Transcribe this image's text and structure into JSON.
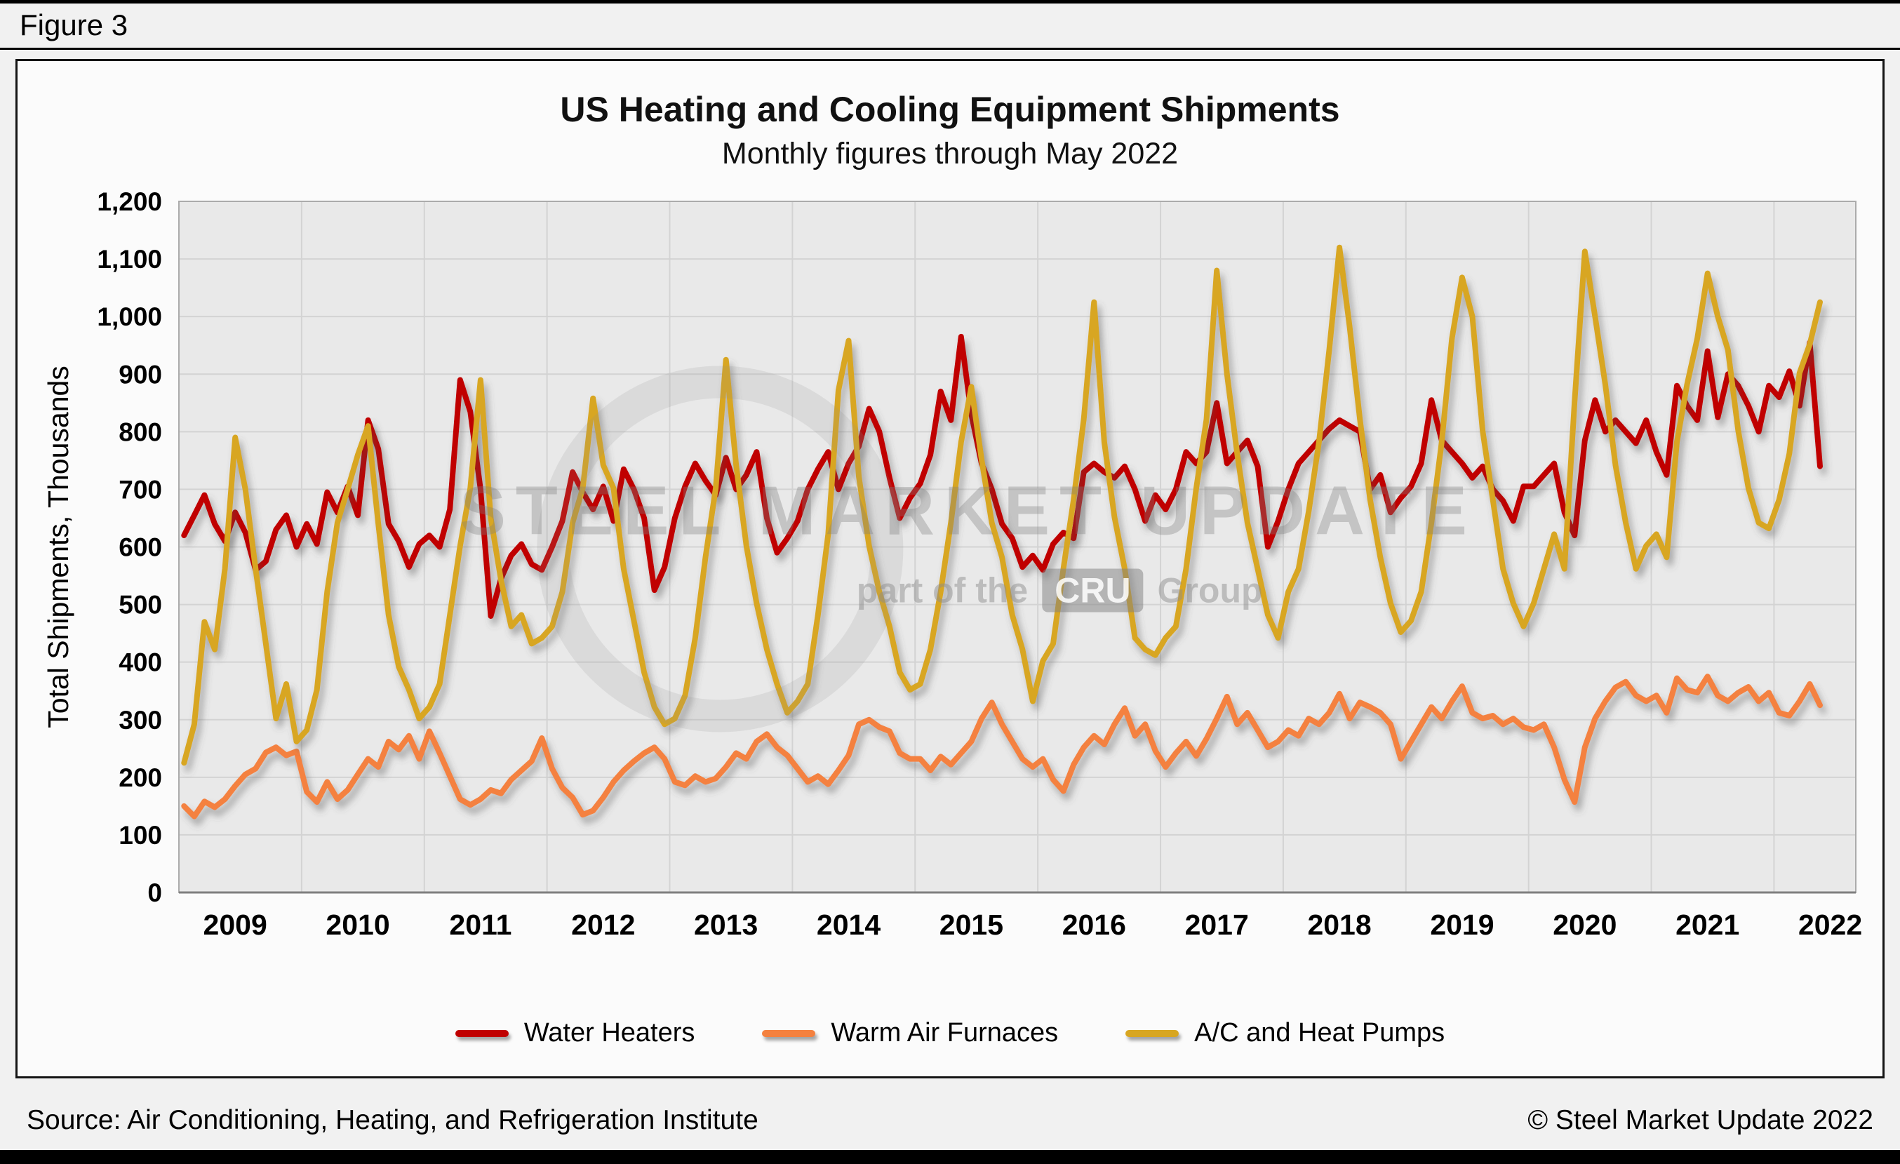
{
  "figure_label": "Figure 3",
  "source": "Source: Air Conditioning, Heating, and Refrigeration Institute",
  "copyright": "© Steel Market Update 2022",
  "watermark": {
    "line1": "STEEL MARKET UPDATE",
    "line2_prefix": "part of the",
    "line2_box": "CRU",
    "line2_suffix": "Group"
  },
  "chart_data": {
    "type": "line",
    "title": "US Heating and Cooling Equipment Shipments",
    "subtitle": "Monthly figures through May 2022",
    "xlabel": "",
    "ylabel": "Total Shipments, Thousands",
    "ylim": [
      0,
      1200
    ],
    "ytick_step": 100,
    "grid": true,
    "legend_position": "bottom",
    "x_unit": "month",
    "x_start": "2009-01",
    "x_end": "2022-05",
    "x_tick_labels": [
      "2009",
      "2010",
      "2011",
      "2012",
      "2013",
      "2014",
      "2015",
      "2016",
      "2017",
      "2018",
      "2019",
      "2020",
      "2021",
      "2022"
    ],
    "series": [
      {
        "name": "Water Heaters",
        "color": "#C00000",
        "values": [
          620,
          655,
          690,
          640,
          610,
          660,
          625,
          560,
          575,
          630,
          655,
          600,
          640,
          605,
          695,
          660,
          705,
          655,
          820,
          770,
          640,
          610,
          565,
          605,
          620,
          600,
          665,
          890,
          835,
          700,
          480,
          545,
          585,
          605,
          570,
          560,
          600,
          645,
          730,
          695,
          665,
          705,
          645,
          735,
          700,
          650,
          525,
          565,
          650,
          705,
          745,
          715,
          690,
          755,
          700,
          725,
          765,
          650,
          590,
          615,
          645,
          700,
          735,
          765,
          700,
          745,
          775,
          840,
          800,
          720,
          650,
          685,
          710,
          760,
          870,
          820,
          965,
          830,
          745,
          700,
          640,
          615,
          565,
          585,
          560,
          605,
          625,
          615,
          730,
          745,
          730,
          720,
          740,
          700,
          645,
          690,
          665,
          700,
          765,
          745,
          765,
          850,
          745,
          765,
          785,
          740,
          600,
          645,
          700,
          745,
          765,
          785,
          805,
          820,
          810,
          800,
          700,
          725,
          660,
          685,
          705,
          745,
          855,
          785,
          765,
          745,
          720,
          740,
          700,
          680,
          645,
          705,
          705,
          725,
          745,
          660,
          620,
          785,
          855,
          800,
          820,
          800,
          780,
          820,
          765,
          725,
          880,
          845,
          820,
          940,
          825,
          900,
          880,
          845,
          800,
          880,
          860,
          905,
          845,
          955,
          740
        ]
      },
      {
        "name": "Warm Air Furnaces",
        "color": "#F4813F",
        "values": [
          150,
          132,
          158,
          148,
          162,
          185,
          205,
          215,
          243,
          252,
          238,
          245,
          175,
          157,
          192,
          162,
          178,
          205,
          232,
          218,
          262,
          248,
          272,
          232,
          280,
          242,
          202,
          162,
          152,
          162,
          178,
          172,
          196,
          212,
          228,
          268,
          215,
          182,
          165,
          135,
          142,
          165,
          192,
          212,
          228,
          242,
          252,
          232,
          192,
          186,
          202,
          192,
          198,
          218,
          242,
          232,
          262,
          275,
          252,
          238,
          215,
          192,
          202,
          188,
          212,
          238,
          292,
          300,
          287,
          280,
          242,
          232,
          232,
          212,
          236,
          222,
          242,
          262,
          302,
          330,
          292,
          262,
          232,
          218,
          232,
          196,
          176,
          222,
          252,
          272,
          257,
          292,
          320,
          272,
          292,
          246,
          218,
          242,
          262,
          237,
          267,
          302,
          340,
          292,
          312,
          282,
          252,
          262,
          282,
          272,
          302,
          292,
          312,
          345,
          302,
          330,
          322,
          312,
          292,
          232,
          262,
          292,
          322,
          302,
          332,
          358,
          312,
          302,
          307,
          292,
          302,
          287,
          282,
          292,
          252,
          196,
          157,
          252,
          302,
          332,
          356,
          366,
          342,
          332,
          342,
          312,
          372,
          352,
          347,
          375,
          342,
          332,
          347,
          357,
          332,
          347,
          312,
          307,
          332,
          362,
          325
        ]
      },
      {
        "name": "A/C and Heat Pumps",
        "color": "#D8A621",
        "values": [
          225,
          292,
          470,
          422,
          562,
          790,
          700,
          562,
          432,
          302,
          362,
          262,
          282,
          352,
          522,
          642,
          700,
          760,
          810,
          640,
          482,
          392,
          352,
          302,
          322,
          362,
          482,
          602,
          702,
          890,
          650,
          542,
          462,
          482,
          432,
          442,
          462,
          522,
          642,
          702,
          858,
          742,
          702,
          562,
          472,
          382,
          322,
          292,
          302,
          342,
          442,
          582,
          702,
          925,
          742,
          602,
          502,
          422,
          362,
          312,
          332,
          362,
          482,
          622,
          872,
          958,
          722,
          602,
          522,
          462,
          382,
          352,
          362,
          422,
          522,
          642,
          782,
          878,
          752,
          642,
          582,
          482,
          422,
          332,
          402,
          432,
          562,
          682,
          822,
          1025,
          782,
          652,
          562,
          442,
          422,
          412,
          442,
          462,
          562,
          702,
          822,
          1080,
          900,
          762,
          642,
          562,
          482,
          442,
          522,
          562,
          662,
          782,
          942,
          1120,
          982,
          822,
          682,
          582,
          502,
          452,
          472,
          522,
          642,
          782,
          962,
          1068,
          1000,
          802,
          682,
          562,
          502,
          462,
          502,
          562,
          622,
          562,
          852,
          1113,
          1000,
          882,
          742,
          642,
          562,
          602,
          622,
          582,
          782,
          882,
          962,
          1075,
          1000,
          942,
          802,
          702,
          642,
          632,
          682,
          762,
          902,
          952,
          1025
        ]
      }
    ]
  }
}
